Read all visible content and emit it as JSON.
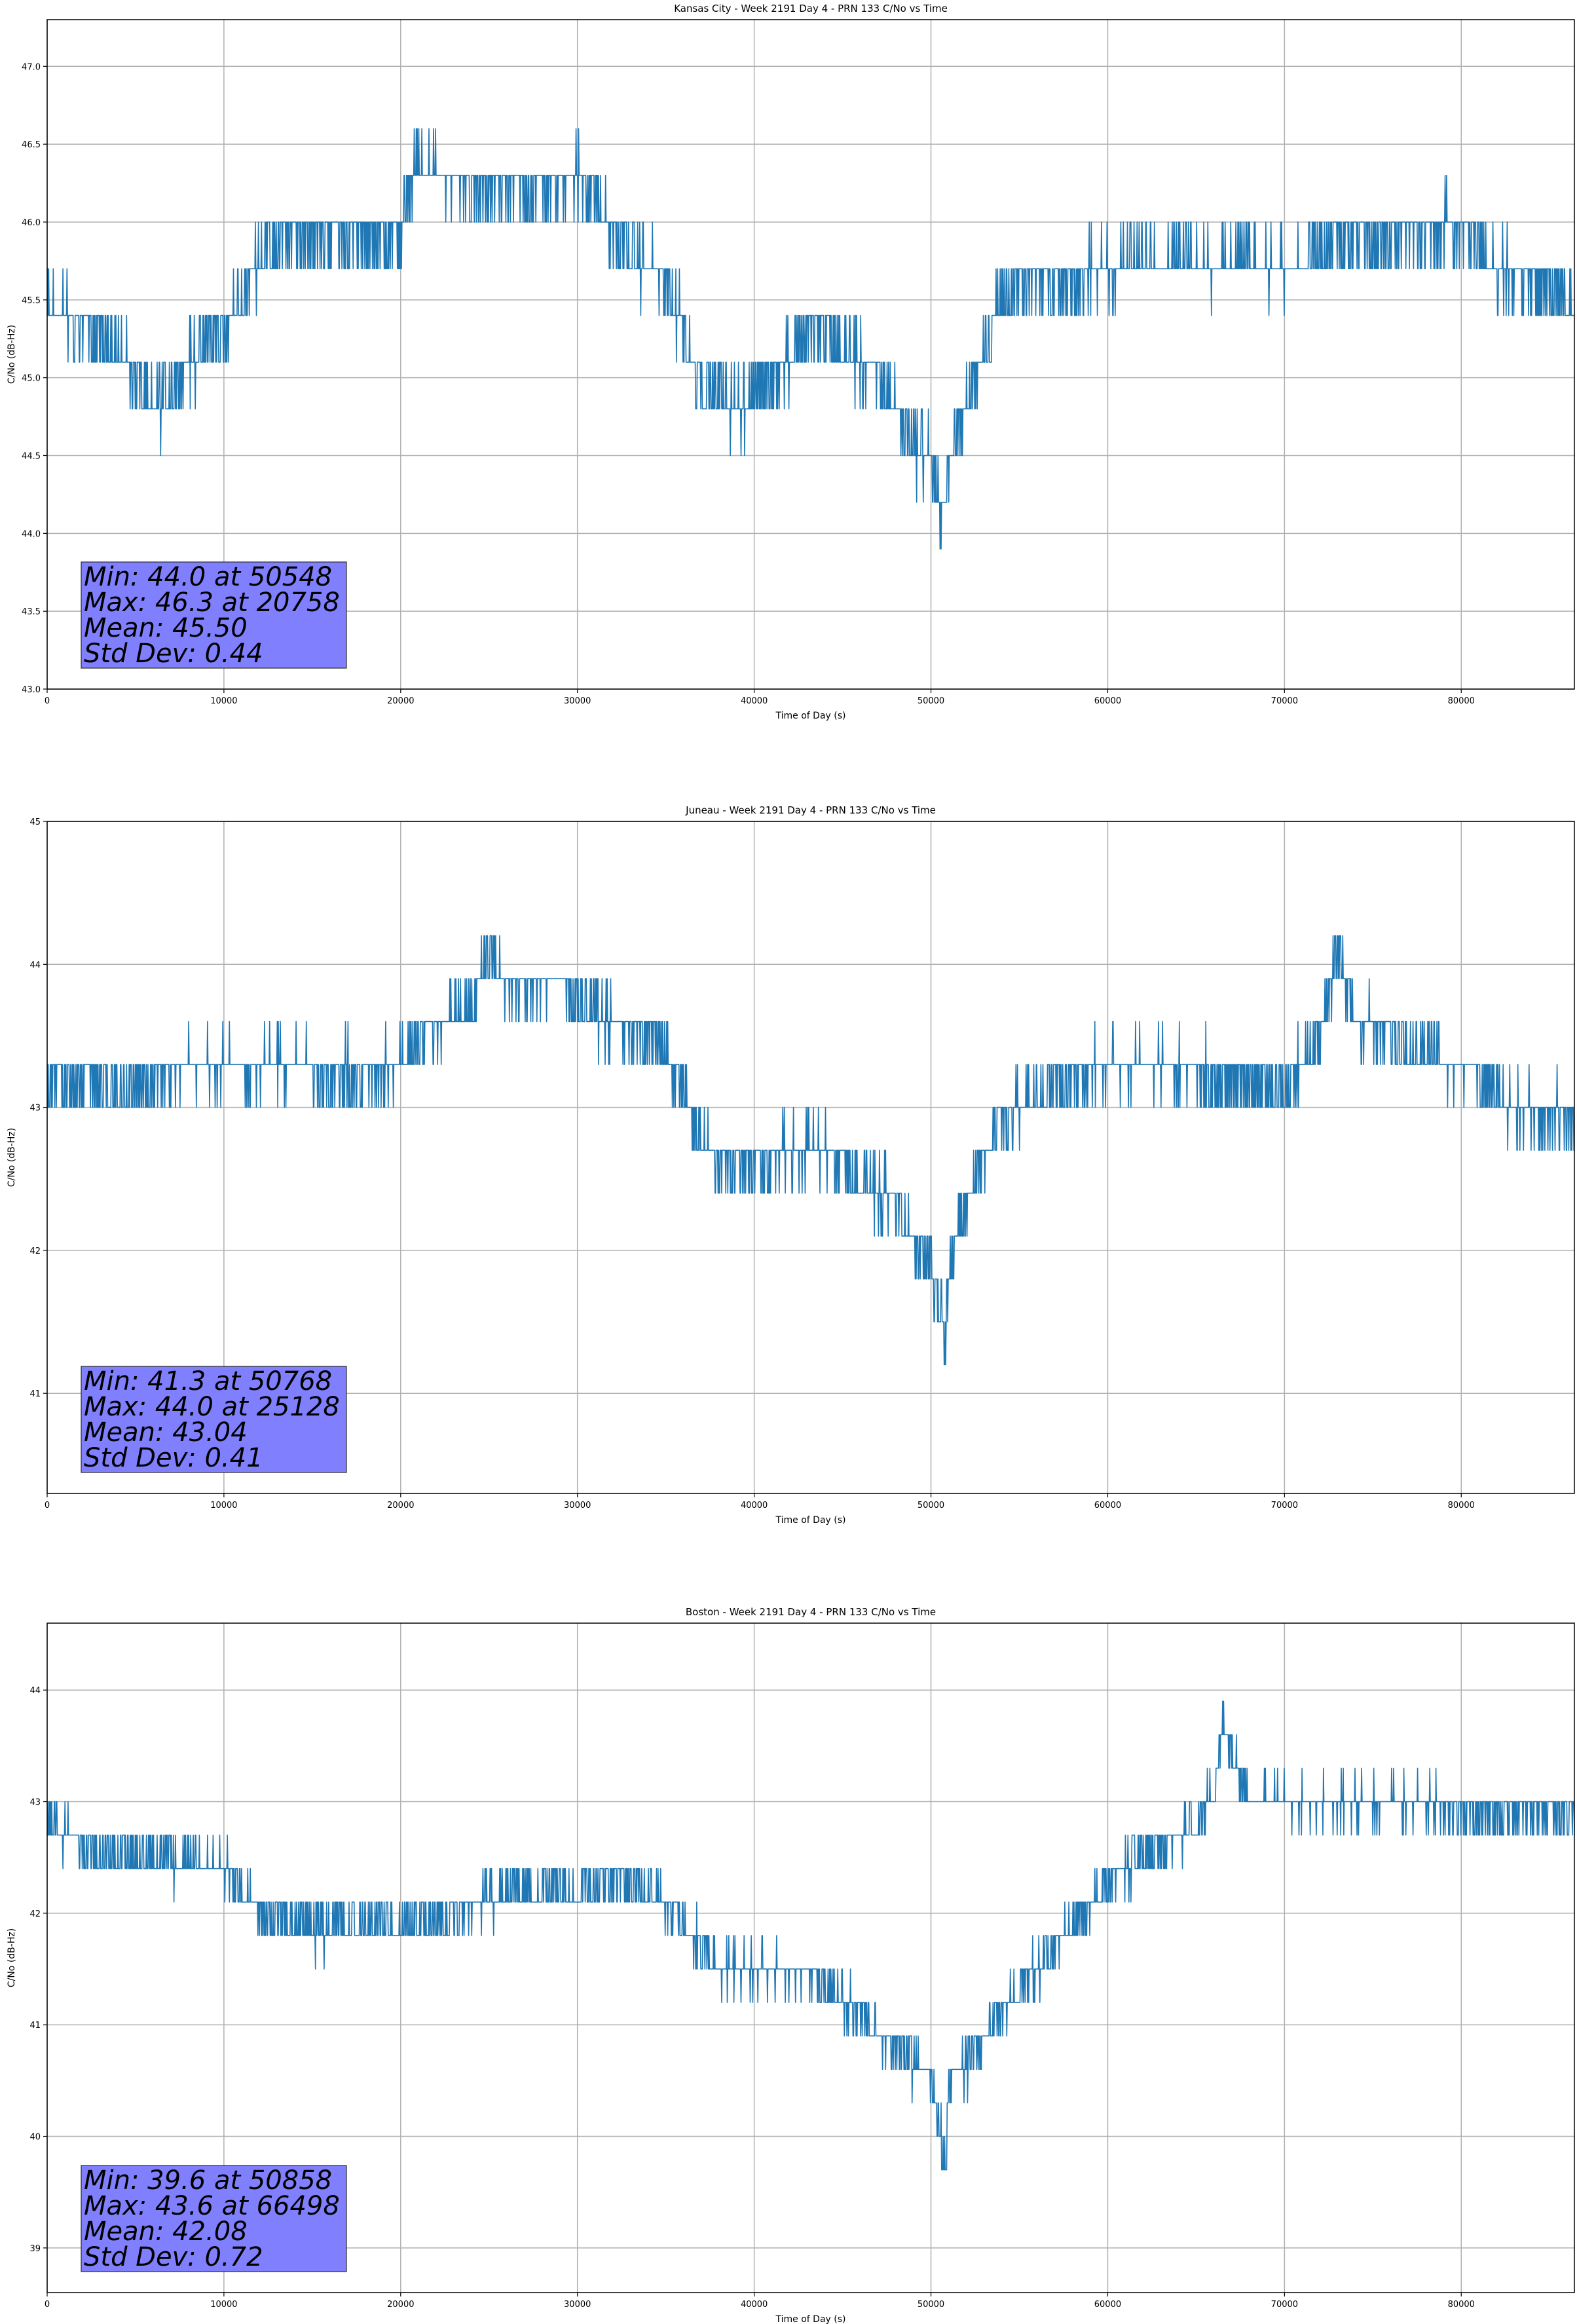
{
  "chart_data": [
    {
      "type": "line",
      "title": "Kansas City - Week 2191 Day 4 - PRN 133 C/No vs Time",
      "xlabel": "Time of Day (s)",
      "ylabel": "C/No (dB-Hz)",
      "xlim": [
        0,
        86400
      ],
      "ylim": [
        43.0,
        47.3
      ],
      "xticks": [
        0,
        10000,
        20000,
        30000,
        40000,
        50000,
        60000,
        70000,
        80000
      ],
      "yticks": [
        43.0,
        43.5,
        44.0,
        44.5,
        45.0,
        45.5,
        46.0,
        46.5,
        47.0
      ],
      "ytick_decimals": 1,
      "grid": true,
      "color": "#1f77b4",
      "stats_box_color": "#8080ff",
      "stats": [
        "Min: 44.0 at 50548",
        "Max: 46.3 at 20758",
        "Mean: 45.50",
        "Std Dev: 0.44"
      ],
      "series": [
        {
          "x": [
            0,
            2000,
            4000,
            6000,
            8000,
            10000,
            11000,
            12000,
            14000,
            16000,
            18000,
            20000,
            20758,
            22000,
            24000,
            26000,
            28000,
            30000,
            31000,
            32000,
            33000,
            34000,
            35000,
            36000,
            37000,
            38000,
            39000,
            40000,
            41000,
            42000,
            43000,
            44000,
            45000,
            46000,
            47000,
            48000,
            49000,
            50000,
            50548,
            51000,
            52000,
            53000,
            54000,
            55000,
            56000,
            58000,
            60000,
            62000,
            64000,
            66000,
            68000,
            70000,
            72000,
            74000,
            76000,
            78000,
            80000,
            82000,
            84000,
            86400
          ],
          "y": [
            45.4,
            45.2,
            45.1,
            44.7,
            45.0,
            45.2,
            45.4,
            45.7,
            45.8,
            45.8,
            45.8,
            45.8,
            46.3,
            46.2,
            46.1,
            46.1,
            46.1,
            46.2,
            46.1,
            45.8,
            45.7,
            45.6,
            45.5,
            45.2,
            44.9,
            44.8,
            44.7,
            44.8,
            44.9,
            45.1,
            45.2,
            45.2,
            45.1,
            45.0,
            44.9,
            44.7,
            44.5,
            44.4,
            44.0,
            44.4,
            44.7,
            45.1,
            45.4,
            45.5,
            45.5,
            45.5,
            45.6,
            45.7,
            45.7,
            45.6,
            45.7,
            45.6,
            45.7,
            45.8,
            45.8,
            45.8,
            45.9,
            45.6,
            45.5,
            45.4
          ]
        }
      ]
    },
    {
      "type": "line",
      "title": "Juneau - Week 2191 Day 4 - PRN 133 C/No vs Time",
      "xlabel": "Time of Day (s)",
      "ylabel": "C/No (dB-Hz)",
      "xlim": [
        0,
        86400
      ],
      "ylim": [
        40.3,
        45.0
      ],
      "xticks": [
        0,
        10000,
        20000,
        30000,
        40000,
        50000,
        60000,
        70000,
        80000
      ],
      "yticks": [
        41,
        42,
        43,
        44,
        45
      ],
      "ytick_decimals": 0,
      "grid": true,
      "color": "#1f77b4",
      "stats_box_color": "#8080ff",
      "stats": [
        "Min: 41.3 at 50768",
        "Max: 44.0 at 25128",
        "Mean: 43.04",
        "Std Dev: 0.41"
      ],
      "series": [
        {
          "x": [
            0,
            2000,
            4000,
            6000,
            8000,
            10000,
            12000,
            14000,
            16000,
            18000,
            20000,
            21000,
            22000,
            24000,
            25128,
            26000,
            28000,
            30000,
            32000,
            34000,
            35000,
            36000,
            37000,
            38000,
            40000,
            42000,
            44000,
            46000,
            47000,
            48000,
            49000,
            50000,
            50768,
            51000,
            52000,
            53000,
            54000,
            56000,
            58000,
            60000,
            62000,
            64000,
            66000,
            68000,
            70000,
            72000,
            73000,
            74000,
            76000,
            78000,
            80000,
            82000,
            84000,
            86400
          ],
          "y": [
            43.1,
            43.1,
            43.0,
            43.1,
            43.2,
            43.2,
            43.2,
            43.2,
            43.1,
            43.1,
            43.2,
            43.4,
            43.5,
            43.6,
            44.0,
            43.7,
            43.8,
            43.7,
            43.5,
            43.4,
            43.3,
            43.0,
            42.7,
            42.5,
            42.5,
            42.6,
            42.6,
            42.4,
            42.3,
            42.2,
            42.0,
            41.8,
            41.3,
            41.8,
            42.2,
            42.6,
            42.8,
            43.0,
            43.1,
            43.2,
            43.2,
            43.2,
            43.1,
            43.1,
            43.0,
            43.4,
            44.0,
            43.5,
            43.4,
            43.3,
            43.2,
            43.0,
            42.8,
            42.8
          ]
        }
      ]
    },
    {
      "type": "line",
      "title": "Boston - Week 2191 Day 4 - PRN 133 C/No vs Time",
      "xlabel": "Time of Day (s)",
      "ylabel": "C/No (dB-Hz)",
      "xlim": [
        0,
        86400
      ],
      "ylim": [
        38.6,
        44.6
      ],
      "xticks": [
        0,
        10000,
        20000,
        30000,
        40000,
        50000,
        60000,
        70000,
        80000
      ],
      "yticks": [
        39,
        40,
        41,
        42,
        43,
        44
      ],
      "ytick_decimals": 0,
      "grid": true,
      "color": "#1f77b4",
      "stats_box_color": "#8080ff",
      "stats": [
        "Min: 39.6 at 50858",
        "Max: 43.6 at 66498",
        "Mean: 42.08",
        "Std Dev: 0.72"
      ],
      "series": [
        {
          "x": [
            0,
            2000,
            4000,
            6000,
            8000,
            10000,
            11000,
            12000,
            14000,
            16000,
            18000,
            20000,
            22000,
            24000,
            26000,
            28000,
            30000,
            32000,
            34000,
            35000,
            36000,
            37000,
            38000,
            40000,
            42000,
            44000,
            45000,
            46000,
            47000,
            48000,
            49000,
            50000,
            50858,
            51000,
            52000,
            53000,
            54000,
            55000,
            56000,
            57000,
            58000,
            59000,
            60000,
            62000,
            64000,
            66000,
            66498,
            68000,
            70000,
            72000,
            74000,
            76000,
            78000,
            80000,
            82000,
            84000,
            86400
          ],
          "y": [
            42.7,
            42.5,
            42.4,
            42.4,
            42.4,
            42.3,
            42.1,
            41.9,
            41.8,
            41.8,
            41.8,
            41.8,
            41.8,
            42.0,
            42.1,
            42.1,
            42.1,
            42.2,
            42.1,
            42.0,
            41.8,
            41.6,
            41.4,
            41.4,
            41.4,
            41.3,
            41.1,
            41.0,
            40.8,
            40.7,
            40.6,
            40.4,
            39.6,
            40.4,
            40.6,
            40.8,
            41.0,
            41.2,
            41.4,
            41.6,
            41.8,
            42.0,
            42.2,
            42.4,
            42.6,
            42.9,
            43.6,
            42.9,
            42.9,
            42.9,
            42.9,
            42.9,
            42.9,
            42.8,
            42.8,
            42.8,
            42.8
          ]
        }
      ]
    }
  ]
}
